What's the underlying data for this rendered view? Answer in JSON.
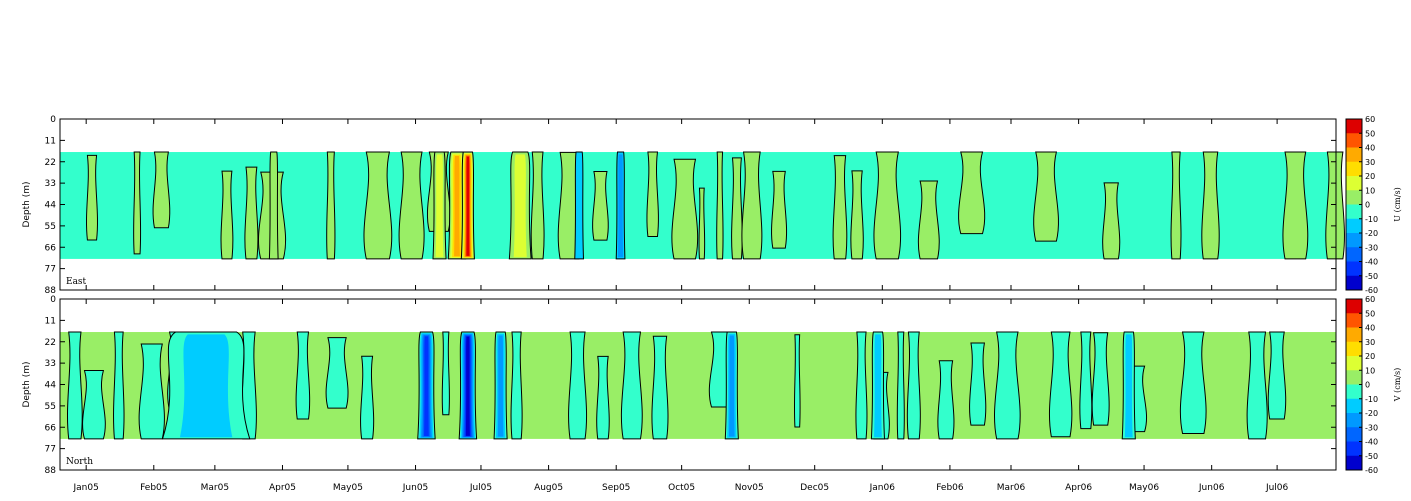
{
  "palette": [
    "#000080",
    "#0000cd",
    "#0033ff",
    "#0066ff",
    "#0099ff",
    "#00ccff",
    "#33ffcc",
    "#99ee66",
    "#ddff33",
    "#ffdd00",
    "#ffaa00",
    "#ff5500",
    "#dd0000"
  ],
  "chart_data": [
    {
      "type": "heatmap",
      "panel_label": "East",
      "ylabel": "Depth (m)",
      "yticks": [
        "0",
        "11",
        "22",
        "33",
        "44",
        "55",
        "66",
        "77",
        "88"
      ],
      "ylim": [
        88,
        0
      ],
      "data_depth_range": [
        17,
        72
      ],
      "colorbar_title": "U (cm/s)",
      "colorbar_ticks": [
        "60",
        "50",
        "40",
        "30",
        "20",
        "10",
        "0",
        "-10",
        "-20",
        "-30",
        "-40",
        "-50",
        "-60"
      ],
      "background_level": -5,
      "contour_level": 0,
      "features": [
        {
          "date": "2005-06-12",
          "width_days": 3,
          "value": 15
        },
        {
          "date": "2005-06-20",
          "width_days": 4,
          "value": 35
        },
        {
          "date": "2005-06-25",
          "width_days": 3,
          "value": 55
        },
        {
          "date": "2005-07-19",
          "width_days": 5,
          "value": 15
        },
        {
          "date": "2005-08-15",
          "width_days": 2,
          "value": -15
        },
        {
          "date": "2005-09-03",
          "width_days": 2,
          "value": -25
        },
        {
          "date": "2005-03-28",
          "width_days": 2,
          "value": 12
        }
      ]
    },
    {
      "type": "heatmap",
      "panel_label": "North",
      "ylabel": "Depth (m)",
      "yticks": [
        "0",
        "11",
        "22",
        "33",
        "44",
        "55",
        "66",
        "77",
        "88"
      ],
      "ylim": [
        88,
        0
      ],
      "data_depth_range": [
        17,
        72
      ],
      "colorbar_title": "V (cm/s)",
      "colorbar_ticks": [
        "60",
        "50",
        "40",
        "30",
        "20",
        "10",
        "0",
        "-10",
        "-20",
        "-30",
        "-40",
        "-50",
        "-60"
      ],
      "background_level": 5,
      "contour_level": 0,
      "features": [
        {
          "date": "2005-02-25",
          "width_days": 20,
          "value": -10
        },
        {
          "date": "2005-06-06",
          "width_days": 4,
          "value": -45
        },
        {
          "date": "2005-06-25",
          "width_days": 4,
          "value": -55
        },
        {
          "date": "2005-07-10",
          "width_days": 3,
          "value": -25
        },
        {
          "date": "2005-10-24",
          "width_days": 3,
          "value": -20
        },
        {
          "date": "2005-12-30",
          "width_days": 3,
          "value": -15
        },
        {
          "date": "2006-04-24",
          "width_days": 3,
          "value": -15
        }
      ]
    }
  ],
  "xaxis": {
    "start": "2004-12-20",
    "end": "2006-07-28",
    "ticks": [
      {
        "label": "Jan05",
        "date": "2005-01-01"
      },
      {
        "label": "Feb05",
        "date": "2005-02-01"
      },
      {
        "label": "Mar05",
        "date": "2005-03-01"
      },
      {
        "label": "Apr05",
        "date": "2005-04-01"
      },
      {
        "label": "May05",
        "date": "2005-05-01"
      },
      {
        "label": "Jun05",
        "date": "2005-06-01"
      },
      {
        "label": "Jul05",
        "date": "2005-07-01"
      },
      {
        "label": "Aug05",
        "date": "2005-08-01"
      },
      {
        "label": "Sep05",
        "date": "2005-09-01"
      },
      {
        "label": "Oct05",
        "date": "2005-10-01"
      },
      {
        "label": "Nov05",
        "date": "2005-11-01"
      },
      {
        "label": "Dec05",
        "date": "2005-12-01"
      },
      {
        "label": "Jan06",
        "date": "2006-01-01"
      },
      {
        "label": "Feb06",
        "date": "2006-02-01"
      },
      {
        "label": "Mar06",
        "date": "2006-03-01"
      },
      {
        "label": "Apr06",
        "date": "2006-04-01"
      },
      {
        "label": "May06",
        "date": "2006-05-01"
      },
      {
        "label": "Jun06",
        "date": "2006-06-01"
      },
      {
        "label": "Jul06",
        "date": "2006-07-01"
      }
    ]
  }
}
